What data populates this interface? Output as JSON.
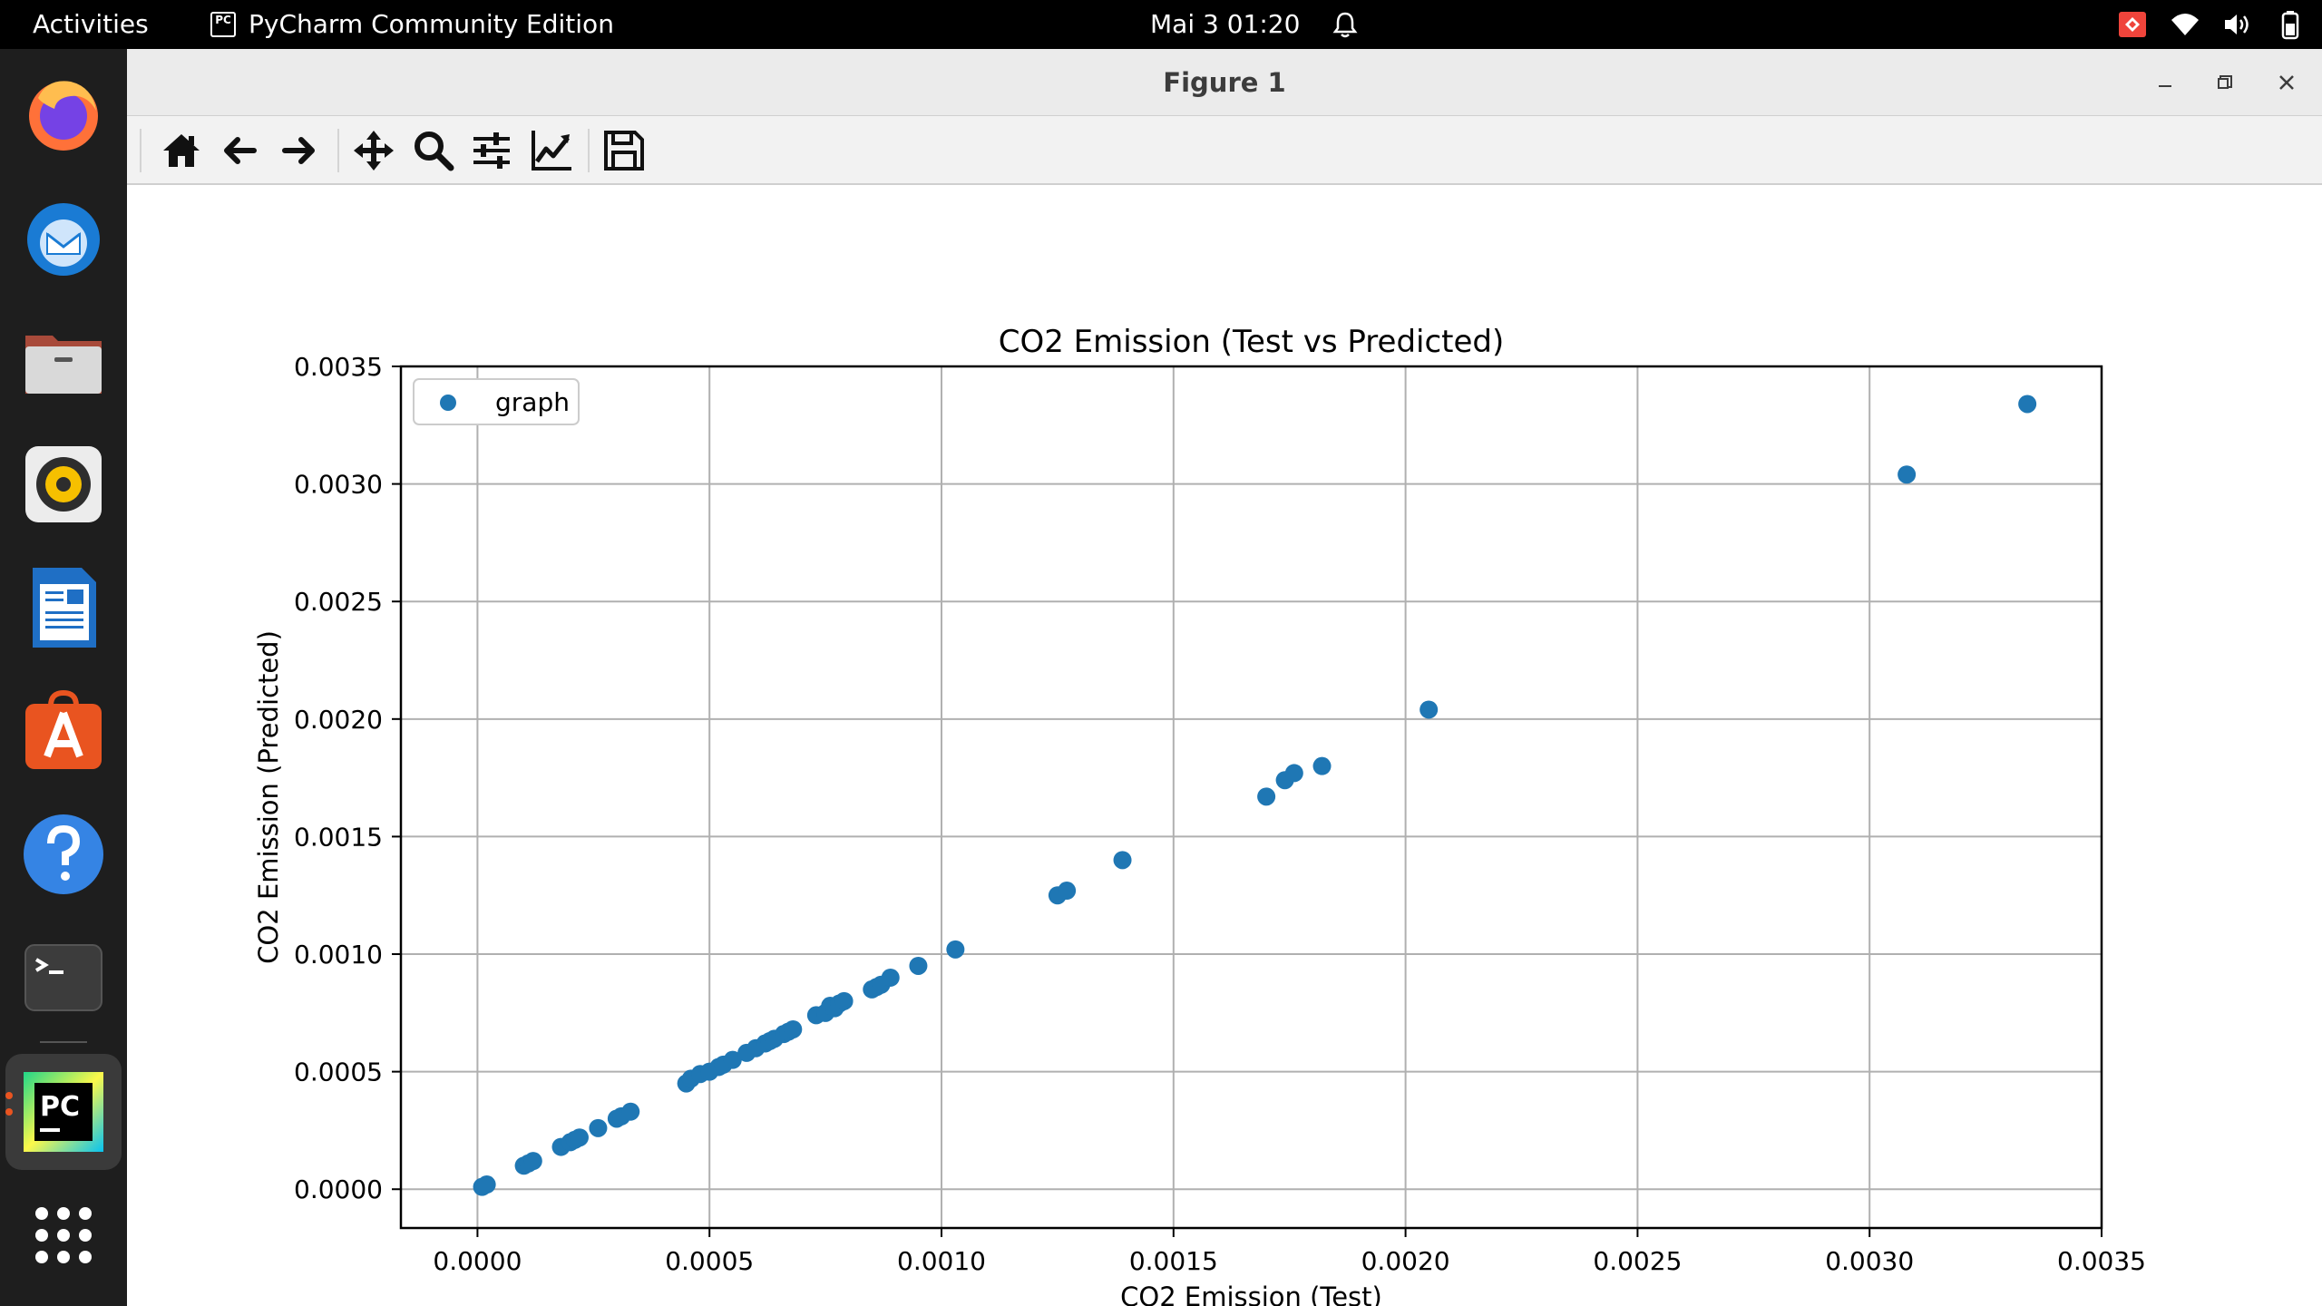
{
  "topbar": {
    "activities": "Activities",
    "app_icon_text": "PC",
    "app_name": "PyCharm Community Edition",
    "clock": "Mai 3  01:20",
    "tray_icons": [
      "anydesk-icon",
      "wifi-icon",
      "volume-icon",
      "battery-icon"
    ]
  },
  "dock": {
    "items": [
      "firefox",
      "thunderbird",
      "files",
      "rhythmbox",
      "libreoffice-writer",
      "ubuntu-software",
      "help",
      "terminal",
      "pycharm",
      "show-applications"
    ],
    "pycharm_label": "PC"
  },
  "window": {
    "title": "Figure 1",
    "controls": [
      "minimize",
      "restore",
      "close"
    ]
  },
  "toolbar": {
    "tools": [
      "home",
      "back",
      "forward",
      "pan",
      "zoom",
      "configure-subplots",
      "edit-axis",
      "save"
    ]
  },
  "colors": {
    "series": "#1f77b4",
    "topbar": "#000000",
    "dock": "#1e1e1e",
    "grid": "#b0b0b0"
  },
  "chart_data": {
    "type": "scatter",
    "title": "CO2 Emission (Test vs Predicted)",
    "xlabel": "CO2 Emission (Test)",
    "ylabel": "CO2 Emission (Predicted)",
    "xlim": [
      -0.000165,
      0.0035
    ],
    "ylim": [
      -0.000165,
      0.0035
    ],
    "xticks": [
      "0.0000",
      "0.0005",
      "0.0010",
      "0.0015",
      "0.0020",
      "0.0025",
      "0.0030",
      "0.0035"
    ],
    "yticks": [
      "0.0000",
      "0.0005",
      "0.0010",
      "0.0015",
      "0.0020",
      "0.0025",
      "0.0030",
      "0.0035"
    ],
    "grid": true,
    "legend_position": "top-left",
    "series": [
      {
        "name": "graph",
        "x": [
          1e-05,
          2e-05,
          0.0001,
          0.00011,
          0.00012,
          0.00018,
          0.0002,
          0.00021,
          0.00022,
          0.00026,
          0.0003,
          0.00031,
          0.00033,
          0.00045,
          0.00046,
          0.00048,
          0.0005,
          0.00052,
          0.00053,
          0.00055,
          0.00058,
          0.0006,
          0.00062,
          0.00063,
          0.00064,
          0.00066,
          0.00067,
          0.00068,
          0.00073,
          0.00075,
          0.00076,
          0.00077,
          0.00078,
          0.00079,
          0.00085,
          0.00086,
          0.00087,
          0.00089,
          0.00095,
          0.00103,
          0.00125,
          0.00127,
          0.00139,
          0.0017,
          0.00174,
          0.00176,
          0.00182,
          0.00205,
          0.00308,
          0.00334
        ],
        "y": [
          1e-05,
          2e-05,
          0.0001,
          0.00011,
          0.00012,
          0.00018,
          0.0002,
          0.00021,
          0.00022,
          0.00026,
          0.0003,
          0.00031,
          0.00033,
          0.00045,
          0.00047,
          0.00049,
          0.0005,
          0.00052,
          0.00053,
          0.00055,
          0.00058,
          0.0006,
          0.00062,
          0.00063,
          0.00064,
          0.00066,
          0.00067,
          0.00068,
          0.00074,
          0.00075,
          0.00078,
          0.00077,
          0.00079,
          0.0008,
          0.00085,
          0.00086,
          0.00087,
          0.0009,
          0.00095,
          0.00102,
          0.00125,
          0.00127,
          0.0014,
          0.00167,
          0.00174,
          0.00177,
          0.0018,
          0.00204,
          0.00304,
          0.00334
        ]
      }
    ]
  }
}
